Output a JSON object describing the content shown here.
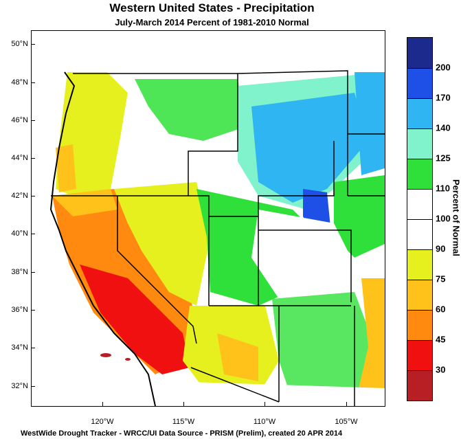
{
  "title": "Western United States - Precipitation",
  "subtitle": "July-March 2014  Percent of 1981-2010 Normal",
  "lat_labels": [
    "50°N",
    "48°N",
    "46°N",
    "44°N",
    "42°N",
    "40°N",
    "38°N",
    "36°N",
    "34°N",
    "32°N"
  ],
  "lon_labels": [
    "120°W",
    "115°W",
    "110°W",
    "105°W"
  ],
  "legend": {
    "title": "Percent of Normal",
    "bins": [
      {
        "label": "200",
        "color": "#1b2a8c"
      },
      {
        "label": "170",
        "color": "#1e4fe6"
      },
      {
        "label": "140",
        "color": "#2fb5f2"
      },
      {
        "label": "125",
        "color": "#80f2cc"
      },
      {
        "label": "110",
        "color": "#2fe03a"
      },
      {
        "label": "100",
        "color": "#ffffff"
      },
      {
        "label": "90",
        "color": "#ffffff"
      },
      {
        "label": "75",
        "color": "#e6f01f"
      },
      {
        "label": "60",
        "color": "#ffc21a"
      },
      {
        "label": "45",
        "color": "#ff8a0f"
      },
      {
        "label": "30",
        "color": "#f01010"
      },
      {
        "label": "",
        "color": "#b81f24"
      }
    ]
  },
  "footer": "WestWide Drought Tracker - WRCC/UI  Data Source - PRISM (Prelim), created 20 APR 2014"
}
